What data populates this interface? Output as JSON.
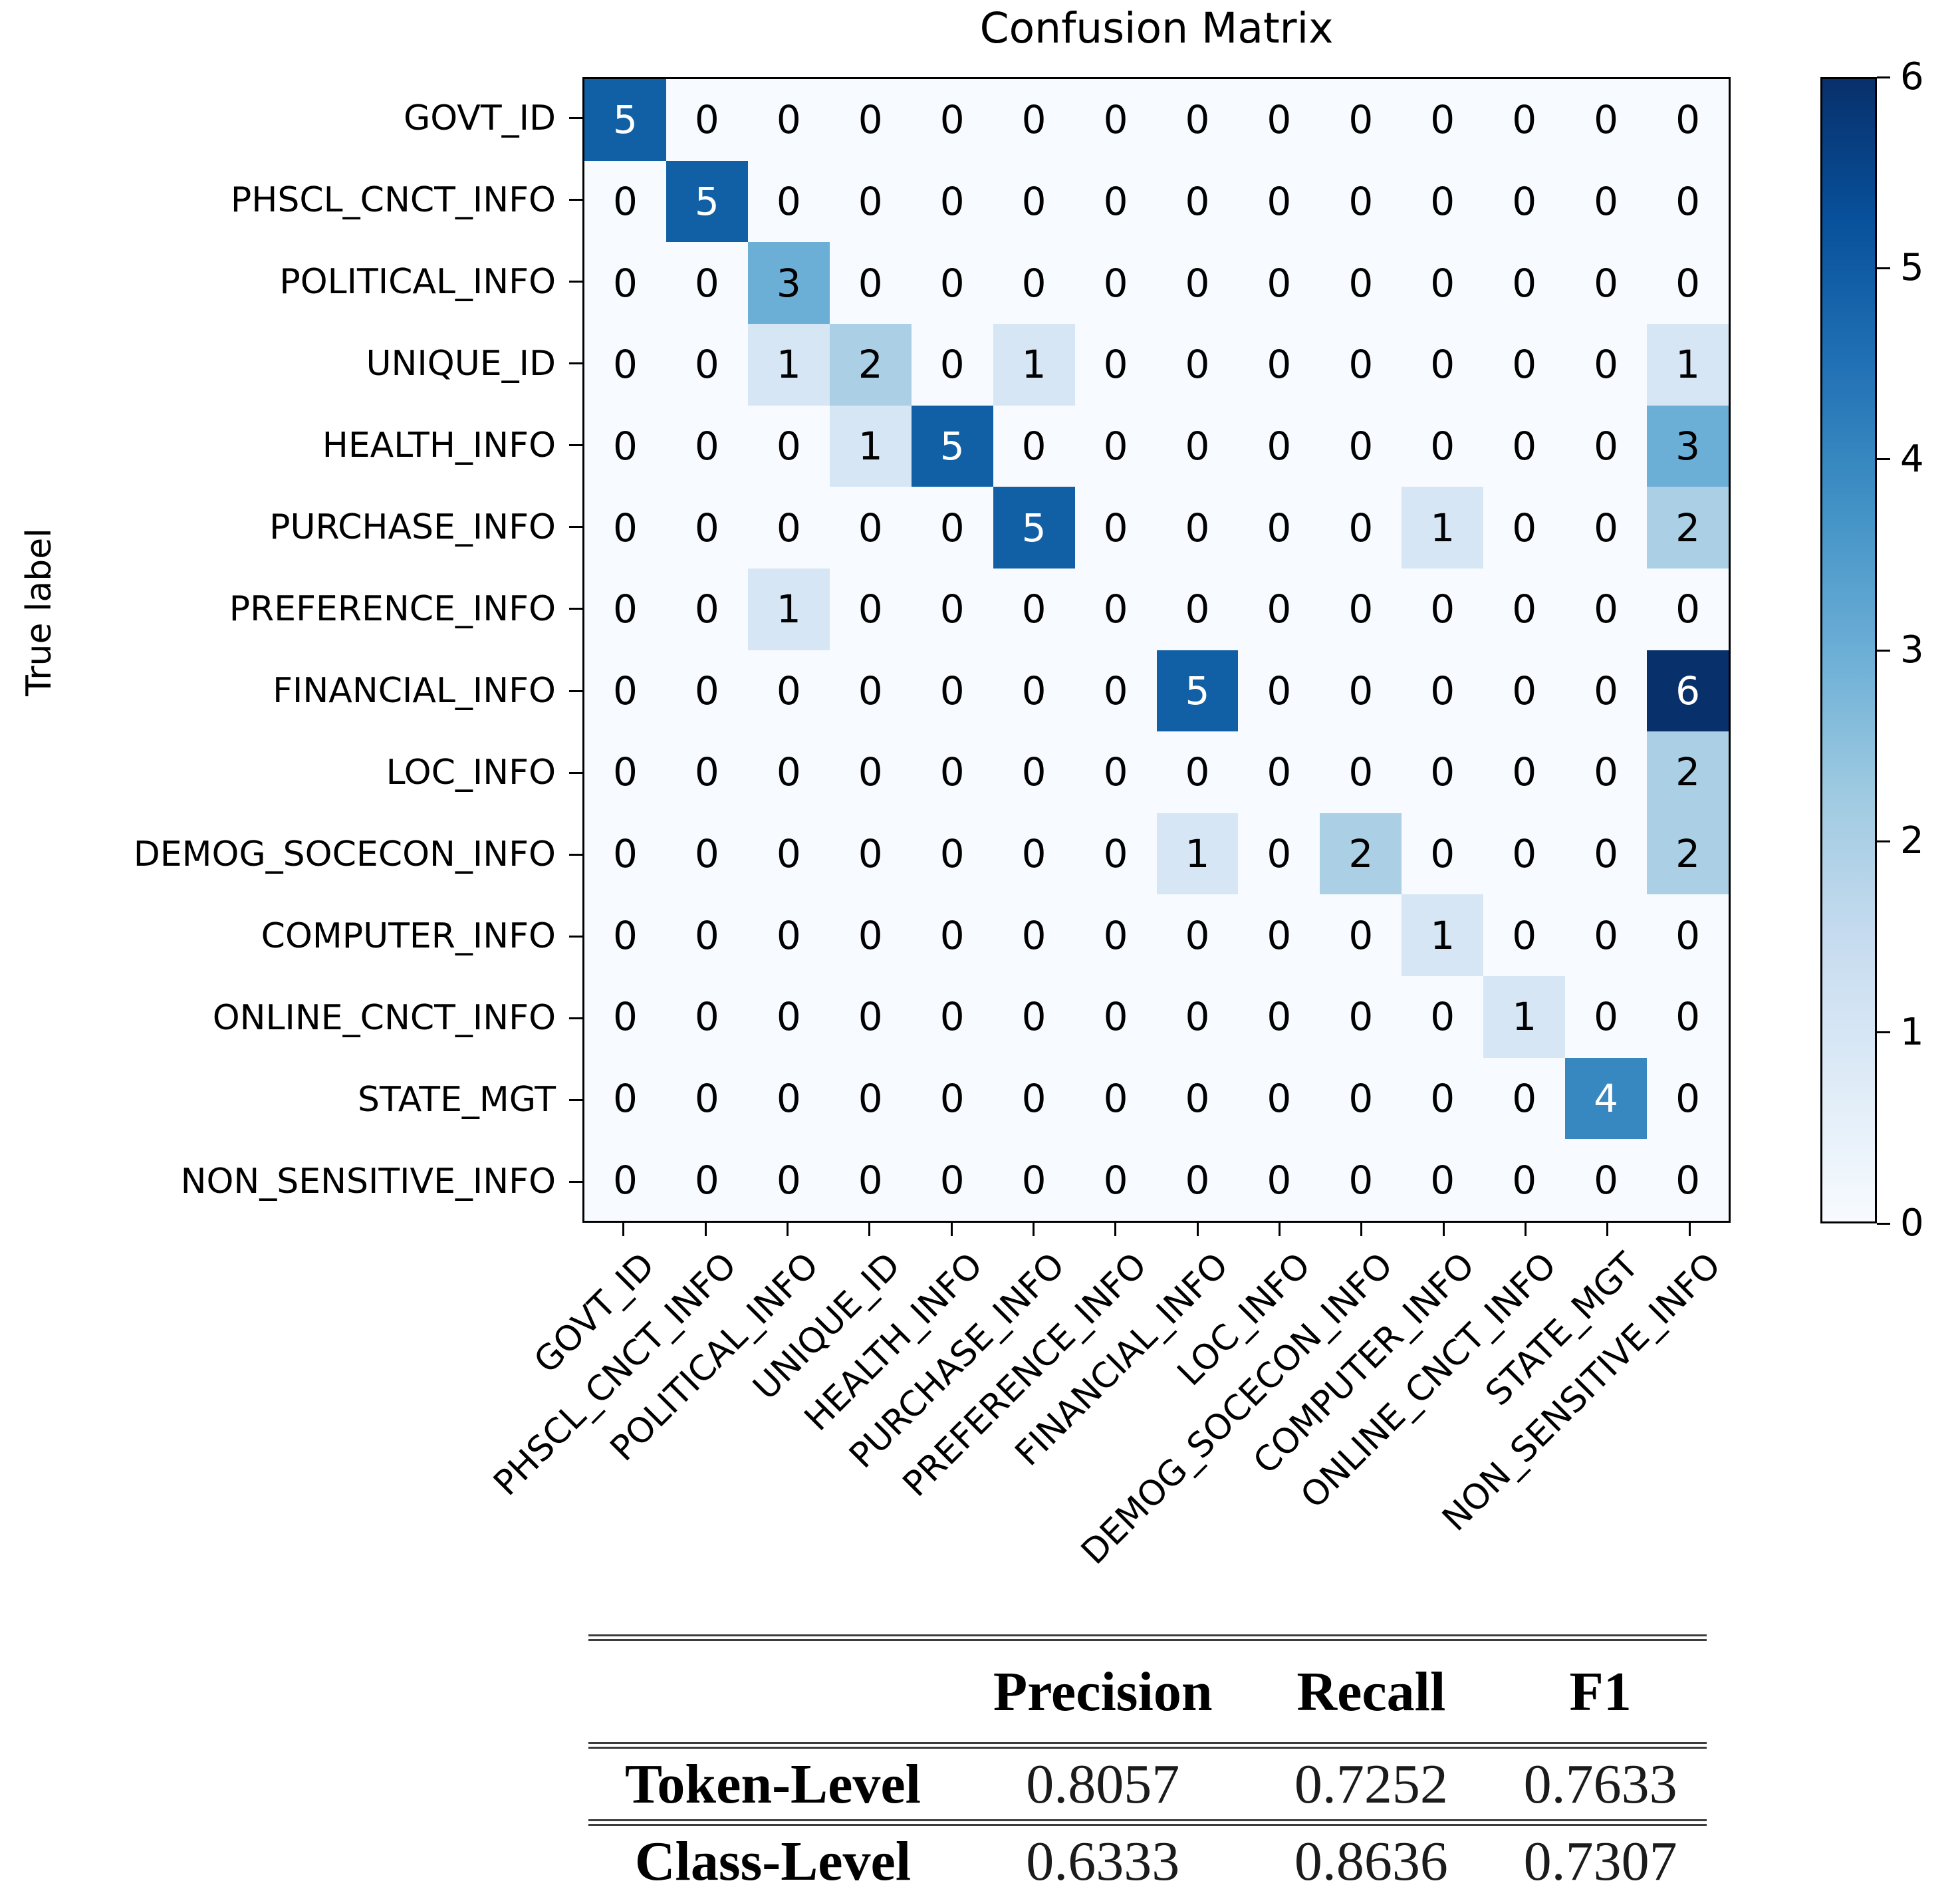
{
  "chart_data": {
    "type": "heatmap",
    "title": "Confusion Matrix",
    "ylabel": "True label",
    "xlabel": "",
    "categories": [
      "GOVT_ID",
      "PHSCL_CNCT_INFO",
      "POLITICAL_INFO",
      "UNIQUE_ID",
      "HEALTH_INFO",
      "PURCHASE_INFO",
      "PREFERENCE_INFO",
      "FINANCIAL_INFO",
      "LOC_INFO",
      "DEMOG_SOCECON_INFO",
      "COMPUTER_INFO",
      "ONLINE_CNCT_INFO",
      "STATE_MGT",
      "NON_SENSITIVE_INFO"
    ],
    "matrix": [
      [
        5,
        0,
        0,
        0,
        0,
        0,
        0,
        0,
        0,
        0,
        0,
        0,
        0,
        0
      ],
      [
        0,
        5,
        0,
        0,
        0,
        0,
        0,
        0,
        0,
        0,
        0,
        0,
        0,
        0
      ],
      [
        0,
        0,
        3,
        0,
        0,
        0,
        0,
        0,
        0,
        0,
        0,
        0,
        0,
        0
      ],
      [
        0,
        0,
        1,
        2,
        0,
        1,
        0,
        0,
        0,
        0,
        0,
        0,
        0,
        1
      ],
      [
        0,
        0,
        0,
        1,
        5,
        0,
        0,
        0,
        0,
        0,
        0,
        0,
        0,
        3
      ],
      [
        0,
        0,
        0,
        0,
        0,
        5,
        0,
        0,
        0,
        0,
        1,
        0,
        0,
        2
      ],
      [
        0,
        0,
        1,
        0,
        0,
        0,
        0,
        0,
        0,
        0,
        0,
        0,
        0,
        0
      ],
      [
        0,
        0,
        0,
        0,
        0,
        0,
        0,
        5,
        0,
        0,
        0,
        0,
        0,
        6
      ],
      [
        0,
        0,
        0,
        0,
        0,
        0,
        0,
        0,
        0,
        0,
        0,
        0,
        0,
        2
      ],
      [
        0,
        0,
        0,
        0,
        0,
        0,
        0,
        1,
        0,
        2,
        0,
        0,
        0,
        2
      ],
      [
        0,
        0,
        0,
        0,
        0,
        0,
        0,
        0,
        0,
        0,
        1,
        0,
        0,
        0
      ],
      [
        0,
        0,
        0,
        0,
        0,
        0,
        0,
        0,
        0,
        0,
        0,
        1,
        0,
        0
      ],
      [
        0,
        0,
        0,
        0,
        0,
        0,
        0,
        0,
        0,
        0,
        0,
        0,
        4,
        0
      ],
      [
        0,
        0,
        0,
        0,
        0,
        0,
        0,
        0,
        0,
        0,
        0,
        0,
        0,
        0
      ]
    ],
    "vmin": 0,
    "vmax": 6,
    "colorbar_ticks": [
      "0",
      "1",
      "2",
      "3",
      "4",
      "5",
      "6"
    ],
    "value_colors": [
      "#f7fbff",
      "#d6e6f4",
      "#abd0e6",
      "#6baed6",
      "#3787c0",
      "#1160a6",
      "#08306b"
    ],
    "white_text_above": 3,
    "colormap_stops": [
      "#f7fbff 0%",
      "#deebf7 12.5%",
      "#c6dbef 25%",
      "#9ecae1 37.5%",
      "#6baed6 50%",
      "#4292c6 62.5%",
      "#2171b5 75%",
      "#08519c 87.5%",
      "#08306b 100%"
    ],
    "legend_position": "right-colorbar",
    "grid": false
  },
  "metrics_table": {
    "col_headers": [
      "Precision",
      "Recall",
      "F1"
    ],
    "rows": [
      {
        "label": "Token-Level",
        "values": [
          "0.8057",
          "0.7252",
          "0.7633"
        ]
      },
      {
        "label": "Class-Level",
        "values": [
          "0.6333",
          "0.8636",
          "0.7307"
        ]
      }
    ]
  }
}
